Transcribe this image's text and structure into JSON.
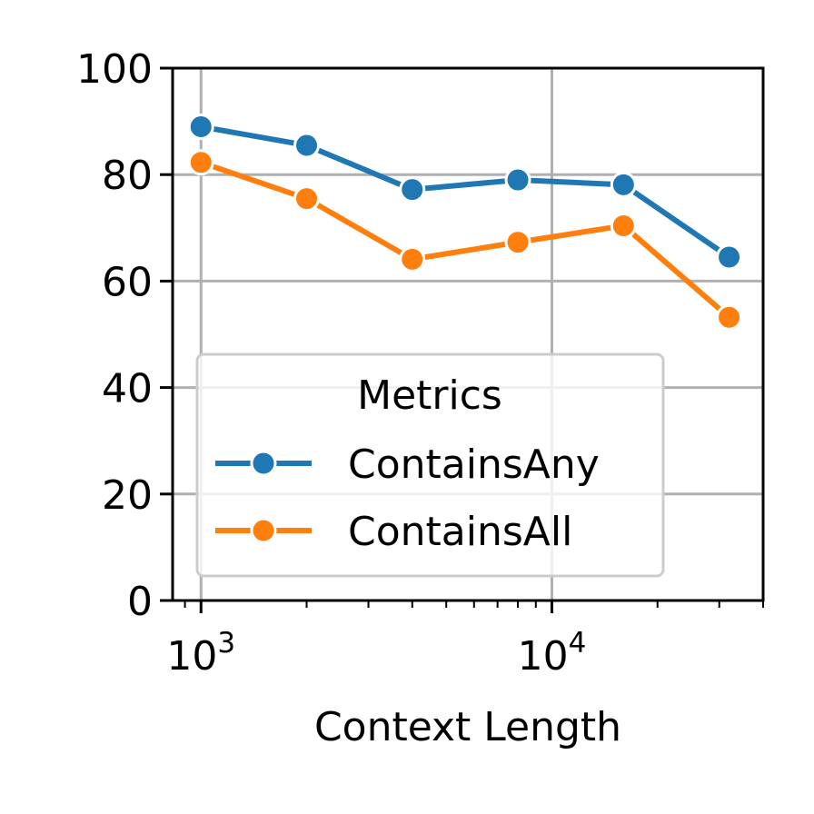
{
  "chart_data": {
    "type": "line",
    "xlabel": "Context Length",
    "ylabel": "",
    "xscale": "log",
    "xlim": [
      830,
      40000
    ],
    "ylim": [
      0,
      100
    ],
    "grid": true,
    "x": [
      1000,
      2000,
      4000,
      8000,
      16000,
      32000
    ],
    "series": [
      {
        "name": "ContainsAny",
        "color": "#1f77b4",
        "values": [
          89,
          85.5,
          77.2,
          79,
          78.1,
          64.5
        ]
      },
      {
        "name": "ContainsAll",
        "color": "#ff7f0e",
        "values": [
          82.3,
          75.5,
          64.1,
          67.3,
          70.4,
          53.2
        ]
      }
    ],
    "yticks": [
      "0",
      "20",
      "40",
      "60",
      "80",
      "100"
    ],
    "xticks": [
      {
        "base": "10",
        "exp": "3",
        "value": 1000
      },
      {
        "base": "10",
        "exp": "4",
        "value": 10000
      }
    ],
    "legend": {
      "title": "Metrics",
      "placement": "center-left"
    }
  }
}
